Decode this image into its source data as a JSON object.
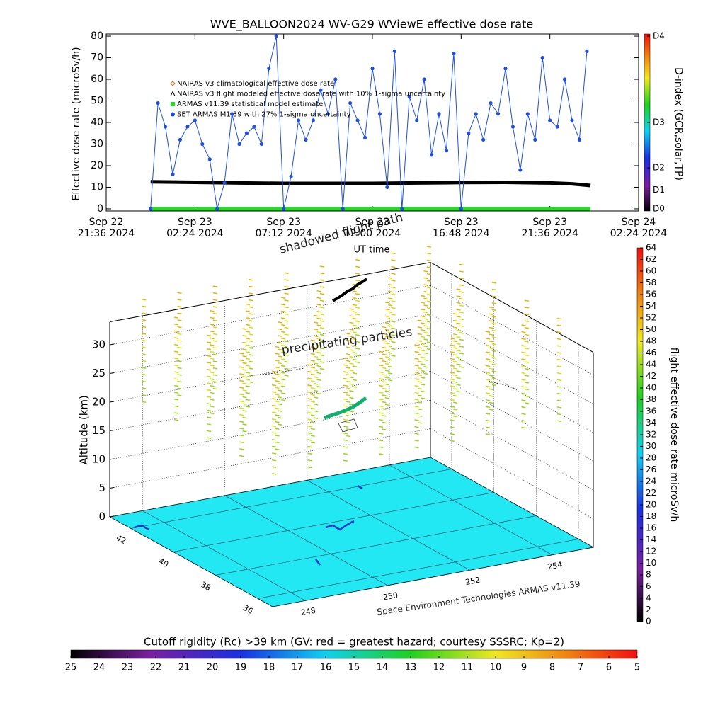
{
  "chart_data": [
    {
      "type": "line",
      "title": "WVE_BALLOON2024 WV-G29 WViewE effective dose rate",
      "x_label": "UT time",
      "y_label": "Effective dose rate (microSv/h)",
      "y2_label": "D-index (GCR,solar,TP)",
      "xlim": [
        0,
        28.8
      ],
      "xticks": [
        {
          "value": 0,
          "label": "Sep 22\n21:36 2024"
        },
        {
          "value": 4.8,
          "label": "Sep 23\n02:24 2024"
        },
        {
          "value": 9.6,
          "label": "Sep 23\n07:12 2024"
        },
        {
          "value": 14.4,
          "label": "Sep 23\n12:00 2024"
        },
        {
          "value": 19.2,
          "label": "Sep 23\n16:48 2024"
        },
        {
          "value": 24.0,
          "label": "Sep 23\n21:36 2024"
        },
        {
          "value": 28.8,
          "label": "Sep 24\n02:24 2024"
        }
      ],
      "ylim": [
        -1,
        81
      ],
      "yticks": [
        0,
        10,
        20,
        30,
        40,
        50,
        60,
        70,
        80
      ],
      "y2lim": [
        -1,
        81
      ],
      "y2ticks": [
        {
          "value": 0,
          "label": "D0"
        },
        {
          "value": 8.6,
          "label": "D1"
        },
        {
          "value": 19,
          "label": "D2"
        },
        {
          "value": 40,
          "label": "D3"
        },
        {
          "value": 80,
          "label": "D4"
        }
      ],
      "series": [
        {
          "name": "NAIRAS v3 climatological effective dose rate",
          "color": "#e06020",
          "marker": "diamond",
          "x": [],
          "values": []
        },
        {
          "name": "NAIRAS v3 flight modeled effective dose rate with 10% 1-sigma uncertainty",
          "color": "#000000",
          "marker": "triangle",
          "x": [
            2.4,
            4.8,
            7.2,
            9.6,
            12.0,
            14.4,
            16.8,
            19.2,
            21.6,
            24.0,
            25.2,
            26.2
          ],
          "values": [
            12.5,
            12.3,
            12.0,
            11.8,
            11.8,
            11.8,
            12.0,
            12.2,
            12.3,
            12.0,
            11.6,
            10.8
          ]
        },
        {
          "name": "ARMAS v11.39 statistical model estimate",
          "color": "#22dd22",
          "marker": "square",
          "x": [
            2.4,
            26.2
          ],
          "values": [
            0,
            0
          ]
        },
        {
          "name": "SET ARMAS M1.39 with 27% 1-sigma uncertainty",
          "color": "#1f4fe0",
          "marker": "circle",
          "x": [
            2.4,
            2.8,
            3.2,
            3.6,
            4.0,
            4.4,
            4.8,
            5.2,
            5.6,
            6.0,
            6.4,
            6.8,
            7.2,
            7.6,
            8.0,
            8.4,
            8.8,
            9.2,
            9.6,
            10.0,
            10.4,
            10.8,
            11.2,
            11.6,
            12.0,
            12.4,
            12.8,
            13.2,
            13.6,
            14.0,
            14.4,
            14.8,
            15.2,
            15.6,
            16.0,
            16.4,
            16.8,
            17.2,
            17.6,
            18.0,
            18.4,
            18.8,
            19.2,
            19.6,
            20.0,
            20.4,
            20.8,
            21.2,
            21.6,
            22.0,
            22.4,
            22.8,
            23.2,
            23.6,
            24.0,
            24.4,
            24.8,
            25.2,
            25.6,
            26.0
          ],
          "values": [
            0,
            49,
            38,
            16,
            32,
            38,
            41,
            30,
            23,
            0,
            12,
            44,
            30,
            35,
            38,
            30,
            65,
            80,
            0,
            15,
            41,
            32,
            41,
            55,
            44,
            60,
            0,
            49,
            41,
            33,
            65,
            44,
            10,
            73,
            0,
            52,
            41,
            60,
            25,
            44,
            27,
            72,
            0,
            35,
            44,
            32,
            49,
            44,
            65,
            38,
            18,
            44,
            32,
            70,
            41,
            38,
            60,
            41,
            32,
            73
          ]
        }
      ]
    },
    {
      "type": "surface3d",
      "z_label": "Altitude (km)",
      "zlim": [
        0,
        34
      ],
      "zticks": [
        0,
        5,
        10,
        15,
        20,
        25,
        30
      ],
      "latlim": [
        35.3,
        43
      ],
      "latticks": [
        36,
        38,
        40,
        42
      ],
      "lonlim": [
        247.2,
        255
      ],
      "lonticks": [
        248,
        250,
        252,
        254
      ],
      "floor_color": "#22e8f4",
      "annotations": [
        "shadowed flight path",
        "precipitating particles",
        "Space Environment Technologies ARMAS v11.39"
      ],
      "colorbar": {
        "label": "flight effective dose rate microSv/h",
        "lim": [
          0,
          64
        ],
        "ticks": [
          0,
          2,
          4,
          6,
          8,
          10,
          12,
          14,
          16,
          18,
          20,
          22,
          24,
          26,
          28,
          30,
          32,
          34,
          36,
          38,
          40,
          42,
          44,
          46,
          48,
          50,
          52,
          54,
          56,
          58,
          60,
          62,
          64
        ]
      }
    },
    {
      "type": "colorbar",
      "title": "Cutoff rigidity (Rc) >39 km (GV: red = greatest hazard; courtesy SSSRC; Kp=2)",
      "xlim": [
        25,
        5
      ],
      "xticks": [
        25,
        24,
        23,
        22,
        21,
        20,
        19,
        18,
        17,
        16,
        15,
        14,
        13,
        12,
        11,
        10,
        9,
        8,
        7,
        6,
        5
      ]
    }
  ]
}
